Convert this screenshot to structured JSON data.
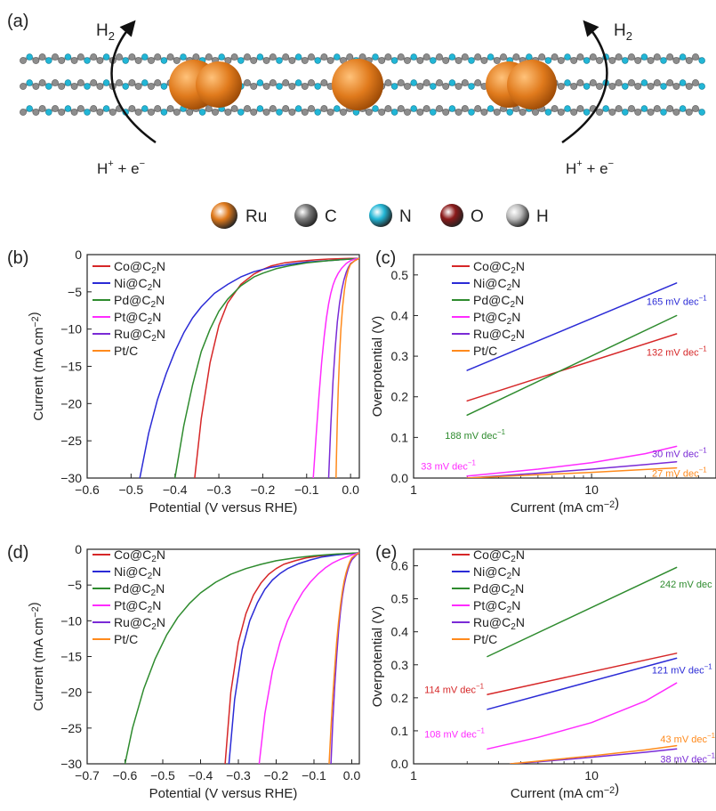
{
  "panel_a": {
    "label": "(a)",
    "h2_left": "H2",
    "h2_right": "H2",
    "hplus_left": "H+ + e−",
    "hplus_right": "H+ + e−",
    "legend": [
      {
        "symbol": "Ru",
        "color": "#e07a1c"
      },
      {
        "symbol": "C",
        "color": "#7a7a7a"
      },
      {
        "symbol": "N",
        "color": "#22b6d6"
      },
      {
        "symbol": "O",
        "color": "#8b1a1a"
      },
      {
        "symbol": "H",
        "color": "#bdbdbd"
      }
    ]
  },
  "colors": {
    "Co@C2N": "#d62728",
    "Ni@C2N": "#2b2bd6",
    "Pd@C2N": "#2e8b2e",
    "Pt@C2N": "#ff2bff",
    "Ru@C2N": "#7a2bd6",
    "Pt/C": "#ff8a1c"
  },
  "chart_data": [
    {
      "panel": "(b)",
      "type": "line",
      "xlabel": "Potential (V versus RHE)",
      "ylabel": "Current (mA cm−2)",
      "xlim": [
        -0.6,
        0.02
      ],
      "ylim": [
        -30,
        0
      ],
      "xticks": [
        -0.6,
        -0.5,
        -0.4,
        -0.3,
        -0.2,
        -0.1,
        0.0
      ],
      "xticklabels": [
        "−0.6",
        "−0.5",
        "−0.4",
        "−0.3",
        "−0.2",
        "−0.1",
        "0.0"
      ],
      "yticks": [
        0,
        -5,
        -10,
        -15,
        -20,
        -25,
        -30
      ],
      "yticklabels": [
        "0",
        "−5",
        "−10",
        "−15",
        "−20",
        "−25",
        "−30"
      ],
      "legend": [
        "Co@C2N",
        "Ni@C2N",
        "Pd@C2N",
        "Pt@C2N",
        "Ru@C2N",
        "Pt/C"
      ],
      "series": [
        {
          "name": "Co@C2N",
          "x": [
            -0.355,
            -0.34,
            -0.32,
            -0.3,
            -0.28,
            -0.25,
            -0.22,
            -0.2,
            -0.18,
            -0.15,
            -0.12,
            -0.1,
            -0.08,
            -0.05,
            0.0,
            0.02
          ],
          "y": [
            -30,
            -22,
            -14.5,
            -9.5,
            -6.5,
            -4.0,
            -2.6,
            -2.0,
            -1.5,
            -1.1,
            -0.9,
            -0.8,
            -0.7,
            -0.6,
            -0.5,
            -0.5
          ]
        },
        {
          "name": "Ni@C2N",
          "x": [
            -0.48,
            -0.46,
            -0.44,
            -0.42,
            -0.4,
            -0.38,
            -0.36,
            -0.34,
            -0.31,
            -0.28,
            -0.25,
            -0.22,
            -0.18,
            -0.14,
            -0.1,
            -0.05,
            0.0,
            0.02
          ],
          "y": [
            -30,
            -24,
            -19.5,
            -16,
            -13,
            -10.5,
            -8.5,
            -7,
            -5.2,
            -4,
            -3,
            -2.3,
            -1.7,
            -1.3,
            -1.0,
            -0.8,
            -0.6,
            -0.5
          ]
        },
        {
          "name": "Pd@C2N",
          "x": [
            -0.4,
            -0.38,
            -0.36,
            -0.34,
            -0.32,
            -0.3,
            -0.28,
            -0.25,
            -0.22,
            -0.2,
            -0.17,
            -0.14,
            -0.1,
            -0.05,
            0.0,
            0.02
          ],
          "y": [
            -30,
            -23,
            -17.5,
            -13,
            -10,
            -7.6,
            -6,
            -4.2,
            -3,
            -2.5,
            -1.9,
            -1.5,
            -1.1,
            -0.8,
            -0.6,
            -0.5
          ]
        },
        {
          "name": "Pt@C2N",
          "x": [
            -0.085,
            -0.078,
            -0.072,
            -0.066,
            -0.06,
            -0.055,
            -0.05,
            -0.045,
            -0.04,
            -0.035,
            -0.028,
            -0.02,
            -0.01,
            0.0,
            0.01,
            0.02
          ],
          "y": [
            -30,
            -24,
            -19,
            -14.5,
            -11,
            -8.5,
            -6.6,
            -5.2,
            -4.1,
            -3.3,
            -2.5,
            -1.8,
            -1.2,
            -0.8,
            -0.6,
            -0.5
          ]
        },
        {
          "name": "Ru@C2N",
          "x": [
            -0.05,
            -0.045,
            -0.04,
            -0.035,
            -0.03,
            -0.025,
            -0.02,
            -0.015,
            -0.01,
            -0.005,
            0.0,
            0.01,
            0.02
          ],
          "y": [
            -30,
            -23,
            -17,
            -12.5,
            -9,
            -6.5,
            -4.7,
            -3.4,
            -2.4,
            -1.7,
            -1.2,
            -0.8,
            -0.5
          ]
        },
        {
          "name": "Pt/C",
          "x": [
            -0.033,
            -0.032,
            -0.03,
            -0.028,
            -0.025,
            -0.022,
            -0.018,
            -0.014,
            -0.01,
            -0.005,
            0.0,
            0.01,
            0.02
          ],
          "y": [
            -30,
            -27,
            -22,
            -18,
            -13.5,
            -10,
            -7,
            -4.8,
            -3.2,
            -2,
            -1.3,
            -0.8,
            -0.5
          ]
        }
      ]
    },
    {
      "panel": "(c)",
      "type": "line",
      "xlabel": "Current (mA cm−2)",
      "ylabel": "Overpotential (V)",
      "xscale": "log",
      "xlim": [
        1,
        50
      ],
      "ylim": [
        0,
        0.55
      ],
      "xticks": [
        1,
        10
      ],
      "xticklabels": [
        "1",
        "10"
      ],
      "yticks": [
        0,
        0.1,
        0.2,
        0.3,
        0.4,
        0.5
      ],
      "yticklabels": [
        "0.0",
        "0.1",
        "0.2",
        "0.3",
        "0.4",
        "0.5"
      ],
      "legend": [
        "Co@C2N",
        "Ni@C2N",
        "Pd@C2N",
        "Pt@C2N",
        "Ru@C2N",
        "Pt/C"
      ],
      "series": [
        {
          "name": "Co@C2N",
          "x": [
            2,
            30
          ],
          "y": [
            0.19,
            0.355
          ]
        },
        {
          "name": "Ni@C2N",
          "x": [
            2,
            30
          ],
          "y": [
            0.265,
            0.48
          ]
        },
        {
          "name": "Pd@C2N",
          "x": [
            2,
            30
          ],
          "y": [
            0.155,
            0.4
          ]
        },
        {
          "name": "Pt@C2N",
          "x": [
            2,
            5,
            10,
            20,
            30
          ],
          "y": [
            0.005,
            0.022,
            0.038,
            0.06,
            0.078
          ]
        },
        {
          "name": "Ru@C2N",
          "x": [
            2,
            5,
            10,
            20,
            30
          ],
          "y": [
            0.0,
            0.012,
            0.022,
            0.033,
            0.04
          ]
        },
        {
          "name": "Pt/C",
          "x": [
            2,
            5,
            10,
            20,
            30
          ],
          "y": [
            0.0,
            0.008,
            0.014,
            0.021,
            0.025
          ]
        }
      ],
      "annotations": [
        {
          "text": "165 mV dec−1",
          "series": "Ni@C2N",
          "x": 28,
          "y": 0.435
        },
        {
          "text": "132 mV dec−1",
          "series": "Co@C2N",
          "x": 28,
          "y": 0.31
        },
        {
          "text": "188 mV dec−1",
          "series": "Pd@C2N",
          "x": 1.5,
          "y": 0.105
        },
        {
          "text": "33 mV dec−1",
          "series": "Pt@C2N",
          "x": 1.1,
          "y": 0.03
        },
        {
          "text": "30 mV dec−1",
          "series": "Ru@C2N",
          "x": 28,
          "y": 0.06
        },
        {
          "text": "27 mV dec−1",
          "series": "Pt/C",
          "x": 28,
          "y": 0.012
        }
      ]
    },
    {
      "panel": "(d)",
      "type": "line",
      "xlabel": "Potential (V versus RHE)",
      "ylabel": "Current (mA cm−2)",
      "xlim": [
        -0.7,
        0.02
      ],
      "ylim": [
        -30,
        0
      ],
      "xticks": [
        -0.7,
        -0.6,
        -0.5,
        -0.4,
        -0.3,
        -0.2,
        -0.1,
        0.0
      ],
      "xticklabels": [
        "−0.7",
        "−0.6",
        "−0.5",
        "−0.4",
        "−0.3",
        "−0.2",
        "−0.1",
        "0.0"
      ],
      "yticks": [
        0,
        -5,
        -10,
        -15,
        -20,
        -25,
        -30
      ],
      "yticklabels": [
        "0",
        "−5",
        "−10",
        "−15",
        "−20",
        "−25",
        "−30"
      ],
      "legend": [
        "Co@C2N",
        "Ni@C2N",
        "Pd@C2N",
        "Pt@C2N",
        "Ru@C2N",
        "Pt/C"
      ],
      "series": [
        {
          "name": "Co@C2N",
          "x": [
            -0.335,
            -0.32,
            -0.3,
            -0.28,
            -0.26,
            -0.24,
            -0.22,
            -0.2,
            -0.18,
            -0.15,
            -0.12,
            -0.08,
            -0.04,
            0.0,
            0.02
          ],
          "y": [
            -30,
            -20,
            -13,
            -9,
            -6.4,
            -4.7,
            -3.5,
            -2.7,
            -2.1,
            -1.6,
            -1.2,
            -0.9,
            -0.7,
            -0.6,
            -0.5
          ]
        },
        {
          "name": "Ni@C2N",
          "x": [
            -0.325,
            -0.31,
            -0.29,
            -0.27,
            -0.25,
            -0.23,
            -0.21,
            -0.19,
            -0.17,
            -0.14,
            -0.11,
            -0.08,
            -0.04,
            0.0,
            0.02
          ],
          "y": [
            -30,
            -21,
            -14,
            -10,
            -7.5,
            -5.6,
            -4.3,
            -3.4,
            -2.7,
            -2,
            -1.5,
            -1.1,
            -0.8,
            -0.6,
            -0.5
          ]
        },
        {
          "name": "Pd@C2N",
          "x": [
            -0.6,
            -0.58,
            -0.55,
            -0.52,
            -0.49,
            -0.46,
            -0.43,
            -0.4,
            -0.36,
            -0.32,
            -0.28,
            -0.24,
            -0.2,
            -0.15,
            -0.1,
            -0.05,
            0.0,
            0.02
          ],
          "y": [
            -30,
            -25,
            -19.5,
            -15.3,
            -12,
            -9.5,
            -7.6,
            -6.1,
            -4.6,
            -3.5,
            -2.7,
            -2.1,
            -1.6,
            -1.2,
            -0.9,
            -0.7,
            -0.55,
            -0.5
          ]
        },
        {
          "name": "Pt@C2N",
          "x": [
            -0.245,
            -0.23,
            -0.21,
            -0.19,
            -0.17,
            -0.15,
            -0.13,
            -0.11,
            -0.09,
            -0.07,
            -0.05,
            -0.03,
            -0.01,
            0.0,
            0.02
          ],
          "y": [
            -30,
            -23,
            -17,
            -13,
            -10,
            -7.8,
            -6,
            -4.6,
            -3.5,
            -2.6,
            -1.9,
            -1.4,
            -1,
            -0.8,
            -0.5
          ]
        },
        {
          "name": "Ru@C2N",
          "x": [
            -0.055,
            -0.05,
            -0.045,
            -0.04,
            -0.035,
            -0.03,
            -0.025,
            -0.02,
            -0.015,
            -0.01,
            -0.005,
            0.0,
            0.01,
            0.02
          ],
          "y": [
            -30,
            -24,
            -19,
            -15,
            -11.5,
            -8.7,
            -6.6,
            -5,
            -3.8,
            -2.8,
            -2,
            -1.5,
            -0.9,
            -0.5
          ]
        },
        {
          "name": "Pt/C",
          "x": [
            -0.06,
            -0.055,
            -0.05,
            -0.045,
            -0.04,
            -0.035,
            -0.03,
            -0.025,
            -0.02,
            -0.015,
            -0.01,
            -0.005,
            0.0,
            0.01,
            0.02
          ],
          "y": [
            -30,
            -25,
            -20.5,
            -16.5,
            -13,
            -10.2,
            -7.8,
            -5.9,
            -4.4,
            -3.3,
            -2.4,
            -1.7,
            -1.2,
            -0.8,
            -0.5
          ]
        }
      ]
    },
    {
      "panel": "(e)",
      "type": "line",
      "xlabel": "Current (mA cm−2)",
      "ylabel": "Overpotential (V)",
      "xscale": "log",
      "xlim": [
        1,
        50
      ],
      "ylim": [
        0,
        0.65
      ],
      "xticks": [
        1,
        10
      ],
      "xticklabels": [
        "1",
        "10"
      ],
      "yticks": [
        0,
        0.1,
        0.2,
        0.3,
        0.4,
        0.5,
        0.6
      ],
      "yticklabels": [
        "0.0",
        "0.1",
        "0.2",
        "0.3",
        "0.4",
        "0.5",
        "0.6"
      ],
      "legend": [
        "Co@C2N",
        "Ni@C2N",
        "Pd@C2N",
        "Pt@C2N",
        "Ru@C2N",
        "Pt/C"
      ],
      "series": [
        {
          "name": "Co@C2N",
          "x": [
            2.6,
            30
          ],
          "y": [
            0.21,
            0.335
          ]
        },
        {
          "name": "Ni@C2N",
          "x": [
            2.6,
            30
          ],
          "y": [
            0.165,
            0.32
          ]
        },
        {
          "name": "Pd@C2N",
          "x": [
            2.6,
            30
          ],
          "y": [
            0.325,
            0.595
          ]
        },
        {
          "name": "Pt@C2N",
          "x": [
            2.6,
            5,
            10,
            20,
            30
          ],
          "y": [
            0.045,
            0.08,
            0.125,
            0.19,
            0.245
          ]
        },
        {
          "name": "Ru@C2N",
          "x": [
            3.5,
            5,
            10,
            20,
            30
          ],
          "y": [
            0.0,
            0.006,
            0.02,
            0.035,
            0.045
          ]
        },
        {
          "name": "Pt/C",
          "x": [
            3.5,
            5,
            10,
            20,
            30
          ],
          "y": [
            0.0,
            0.008,
            0.024,
            0.042,
            0.055
          ]
        }
      ],
      "annotations": [
        {
          "text": "242 mV dec",
          "series": "Pd@C2N",
          "x": 30,
          "y": 0.545
        },
        {
          "text": "121 mV dec−1",
          "series": "Ni@C2N",
          "x": 30,
          "y": 0.285
        },
        {
          "text": "114 mV dec−1",
          "series": "Co@C2N",
          "x": 1.15,
          "y": 0.225
        },
        {
          "text": "108 mV dec−1",
          "series": "Pt@C2N",
          "x": 1.15,
          "y": 0.09
        },
        {
          "text": "43 mV dec−1",
          "series": "Pt/C",
          "x": 32,
          "y": 0.075
        },
        {
          "text": "38 mV dec−1",
          "series": "Ru@C2N",
          "x": 32,
          "y": 0.015
        }
      ]
    }
  ]
}
